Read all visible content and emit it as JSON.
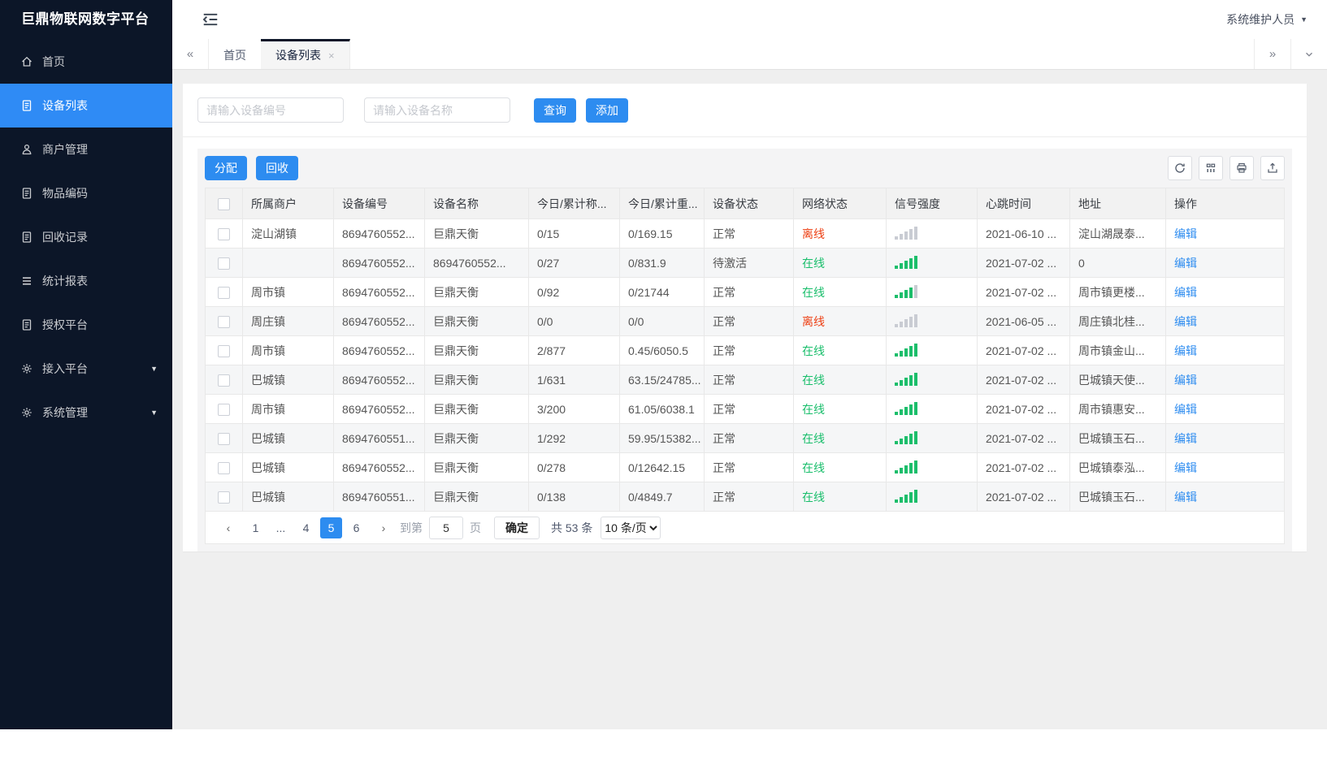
{
  "app": {
    "title": "巨鼎物联网数字平台",
    "user": "系统维护人员"
  },
  "colors": {
    "primary": "#2d8cf0",
    "sidebar_bg": "#0c1628",
    "sidebar_active": "#2f8bf5",
    "danger": "#ed4014",
    "success": "#19be6b"
  },
  "sidebar": {
    "items": [
      {
        "label": "首页",
        "icon": "home",
        "active": false,
        "caret": false
      },
      {
        "label": "设备列表",
        "icon": "doc",
        "active": true,
        "caret": false
      },
      {
        "label": "商户管理",
        "icon": "user",
        "active": false,
        "caret": false
      },
      {
        "label": "物品编码",
        "icon": "doc",
        "active": false,
        "caret": false
      },
      {
        "label": "回收记录",
        "icon": "doc",
        "active": false,
        "caret": false
      },
      {
        "label": "统计报表",
        "icon": "lines",
        "active": false,
        "caret": false
      },
      {
        "label": "授权平台",
        "icon": "doc",
        "active": false,
        "caret": false
      },
      {
        "label": "接入平台",
        "icon": "gear",
        "active": false,
        "caret": true
      },
      {
        "label": "系统管理",
        "icon": "gear",
        "active": false,
        "caret": true
      }
    ]
  },
  "tabs": {
    "left_scroll": "«",
    "right_scroll": "»",
    "items": [
      {
        "label": "首页",
        "active": false,
        "closable": false
      },
      {
        "label": "设备列表",
        "active": true,
        "closable": true
      }
    ],
    "close_glyph": "×"
  },
  "search": {
    "device_no_placeholder": "请输入设备编号",
    "device_name_placeholder": "请输入设备名称",
    "query_label": "查询",
    "add_label": "添加"
  },
  "toolbar": {
    "assign_label": "分配",
    "recycle_label": "回收",
    "icons": [
      {
        "icon": "refresh",
        "btn": "refresh-button"
      },
      {
        "icon": "columns",
        "btn": "columns-button"
      },
      {
        "icon": "print",
        "btn": "print-button"
      },
      {
        "icon": "export",
        "btn": "export-button"
      }
    ]
  },
  "table": {
    "columns": [
      "所属商户",
      "设备编号",
      "设备名称",
      "今日/累计称...",
      "今日/累计重...",
      "设备状态",
      "网络状态",
      "信号强度",
      "心跳时间",
      "地址",
      "操作"
    ],
    "rows": [
      {
        "merchant": "淀山湖镇",
        "device_no": "8694760552...",
        "device_name": "巨鼎天衡",
        "count": "0/15",
        "weight": "0/169.15",
        "device_status": "正常",
        "network_status": "离线",
        "network_state": "offline",
        "signal_lit": 0,
        "heartbeat": "2021-06-10 ...",
        "address": "淀山湖晟泰...",
        "action": "编辑"
      },
      {
        "merchant": "",
        "device_no": "8694760552...",
        "device_name": "8694760552...",
        "count": "0/27",
        "weight": "0/831.9",
        "device_status": "待激活",
        "network_status": "在线",
        "network_state": "online",
        "signal_lit": 5,
        "heartbeat": "2021-07-02 ...",
        "address": "0",
        "action": "编辑"
      },
      {
        "merchant": "周市镇",
        "device_no": "8694760552...",
        "device_name": "巨鼎天衡",
        "count": "0/92",
        "weight": "0/21744",
        "device_status": "正常",
        "network_status": "在线",
        "network_state": "online",
        "signal_lit": 4,
        "heartbeat": "2021-07-02 ...",
        "address": "周市镇更楼...",
        "action": "编辑"
      },
      {
        "merchant": "周庄镇",
        "device_no": "8694760552...",
        "device_name": "巨鼎天衡",
        "count": "0/0",
        "weight": "0/0",
        "device_status": "正常",
        "network_status": "离线",
        "network_state": "offline",
        "signal_lit": 0,
        "heartbeat": "2021-06-05 ...",
        "address": "周庄镇北桂...",
        "action": "编辑"
      },
      {
        "merchant": "周市镇",
        "device_no": "8694760552...",
        "device_name": "巨鼎天衡",
        "count": "2/877",
        "weight": "0.45/6050.5",
        "device_status": "正常",
        "network_status": "在线",
        "network_state": "online",
        "signal_lit": 5,
        "heartbeat": "2021-07-02 ...",
        "address": "周市镇金山...",
        "action": "编辑"
      },
      {
        "merchant": "巴城镇",
        "device_no": "8694760552...",
        "device_name": "巨鼎天衡",
        "count": "1/631",
        "weight": "63.15/24785...",
        "device_status": "正常",
        "network_status": "在线",
        "network_state": "online",
        "signal_lit": 5,
        "heartbeat": "2021-07-02 ...",
        "address": "巴城镇天使...",
        "action": "编辑"
      },
      {
        "merchant": "周市镇",
        "device_no": "8694760552...",
        "device_name": "巨鼎天衡",
        "count": "3/200",
        "weight": "61.05/6038.1",
        "device_status": "正常",
        "network_status": "在线",
        "network_state": "online",
        "signal_lit": 5,
        "heartbeat": "2021-07-02 ...",
        "address": "周市镇惠安...",
        "action": "编辑"
      },
      {
        "merchant": "巴城镇",
        "device_no": "8694760551...",
        "device_name": "巨鼎天衡",
        "count": "1/292",
        "weight": "59.95/15382...",
        "device_status": "正常",
        "network_status": "在线",
        "network_state": "online",
        "signal_lit": 5,
        "heartbeat": "2021-07-02 ...",
        "address": "巴城镇玉石...",
        "action": "编辑"
      },
      {
        "merchant": "巴城镇",
        "device_no": "8694760552...",
        "device_name": "巨鼎天衡",
        "count": "0/278",
        "weight": "0/12642.15",
        "device_status": "正常",
        "network_status": "在线",
        "network_state": "online",
        "signal_lit": 5,
        "heartbeat": "2021-07-02 ...",
        "address": "巴城镇泰泓...",
        "action": "编辑"
      },
      {
        "merchant": "巴城镇",
        "device_no": "8694760551...",
        "device_name": "巨鼎天衡",
        "count": "0/138",
        "weight": "0/4849.7",
        "device_status": "正常",
        "network_status": "在线",
        "network_state": "online",
        "signal_lit": 5,
        "heartbeat": "2021-07-02 ...",
        "address": "巴城镇玉石...",
        "action": "编辑"
      }
    ]
  },
  "pagination": {
    "prev": "‹",
    "next": "›",
    "pages": [
      {
        "label": "1",
        "active": false,
        "dots": false
      },
      {
        "label": "...",
        "active": false,
        "dots": true
      },
      {
        "label": "4",
        "active": false,
        "dots": false
      },
      {
        "label": "5",
        "active": true,
        "dots": false
      },
      {
        "label": "6",
        "active": false,
        "dots": false
      }
    ],
    "goto_label": "到第",
    "goto_value": "5",
    "page_label": "页",
    "confirm_label": "确定",
    "total_label": "共 53 条",
    "page_size": "10 条/页"
  }
}
